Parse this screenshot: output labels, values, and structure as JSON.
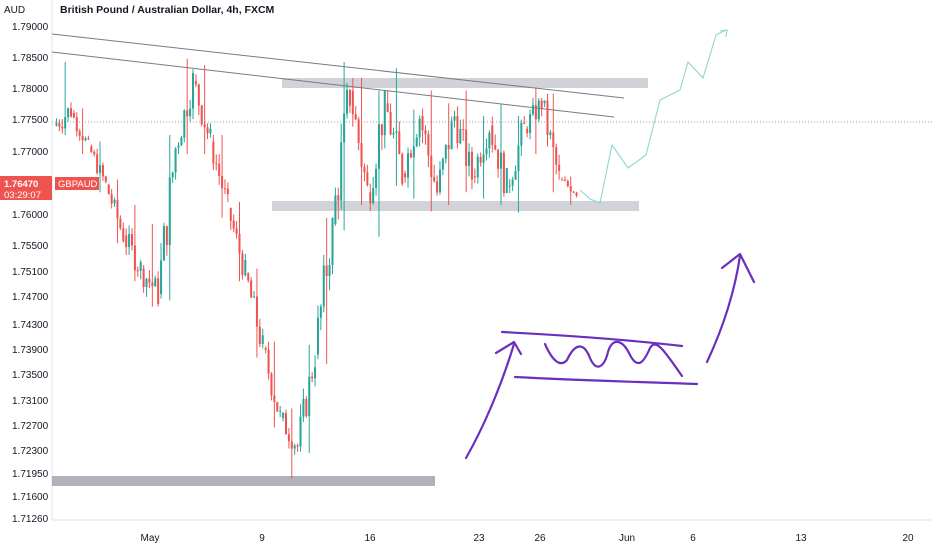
{
  "header": {
    "currency_label": "AUD",
    "title": "British Pound / Australian Dollar, 4h, FXCM"
  },
  "price_badge": {
    "price": "1.76470",
    "symbol": "GBPAUD",
    "countdown": "03:29:07"
  },
  "colors": {
    "up": "#26a69a",
    "down": "#ef5350",
    "zone": "#b2b5be",
    "trendline": "#787b86",
    "projection": "#8fd6cd",
    "drawing": "#6a2fbf",
    "badge": "#ef5350"
  },
  "chart_data": {
    "type": "candlestick",
    "title": "British Pound / Australian Dollar, 4h, FXCM",
    "ylabel": "AUD",
    "ylim": [
      1.7104,
      1.7913
    ],
    "y_ticks": [
      "1.79000",
      "1.78500",
      "1.78000",
      "1.77500",
      "1.77000",
      "1.76470",
      "1.76000",
      "1.75500",
      "1.75100",
      "1.74700",
      "1.74300",
      "1.73900",
      "1.73500",
      "1.73100",
      "1.72700",
      "1.72300",
      "1.71950",
      "1.71600",
      "1.71260"
    ],
    "x_ticks": [
      "May",
      "9",
      "16",
      "23",
      "26",
      "Jun",
      "6",
      "13",
      "20"
    ],
    "last_price": 1.7647,
    "support_zones": [
      1.7605,
      1.7798,
      1.7185
    ],
    "ohlc_anchors": [
      [
        1.7745,
        1.7845,
        1.773,
        1.777
      ],
      [
        1.7765,
        1.7772,
        1.77,
        1.7712
      ],
      [
        1.7712,
        1.772,
        1.764,
        1.7652
      ],
      [
        1.7652,
        1.766,
        1.756,
        1.7572
      ],
      [
        1.7572,
        1.762,
        1.75,
        1.752
      ],
      [
        1.752,
        1.759,
        1.746,
        1.748
      ],
      [
        1.748,
        1.773,
        1.747,
        1.771
      ],
      [
        1.771,
        1.785,
        1.77,
        1.7815
      ],
      [
        1.7815,
        1.784,
        1.77,
        1.772
      ],
      [
        1.772,
        1.773,
        1.76,
        1.7615
      ],
      [
        1.7615,
        1.7625,
        1.75,
        1.7512
      ],
      [
        1.7512,
        1.752,
        1.738,
        1.7395
      ],
      [
        1.7395,
        1.7405,
        1.727,
        1.7285
      ],
      [
        1.7285,
        1.73,
        1.719,
        1.724
      ],
      [
        1.724,
        1.74,
        1.723,
        1.7385
      ],
      [
        1.7385,
        1.76,
        1.737,
        1.759
      ],
      [
        1.759,
        1.7845,
        1.758,
        1.78
      ],
      [
        1.78,
        1.782,
        1.762,
        1.764
      ],
      [
        1.764,
        1.78,
        1.757,
        1.778
      ],
      [
        1.778,
        1.7835,
        1.765,
        1.767
      ],
      [
        1.767,
        1.777,
        1.763,
        1.776
      ],
      [
        1.776,
        1.78,
        1.761,
        1.764
      ],
      [
        1.764,
        1.778,
        1.762,
        1.776
      ],
      [
        1.776,
        1.78,
        1.764,
        1.7665
      ],
      [
        1.7665,
        1.776,
        1.763,
        1.7745
      ],
      [
        1.7745,
        1.778,
        1.762,
        1.765
      ],
      [
        1.765,
        1.776,
        1.7608,
        1.774
      ],
      [
        1.774,
        1.7805,
        1.77,
        1.778
      ],
      [
        1.778,
        1.7795,
        1.764,
        1.766
      ],
      [
        1.766,
        1.7665,
        1.762,
        1.764
      ]
    ],
    "projection_path": [
      [
        1.762,
        1.7612
      ],
      [
        1.764,
        1.762
      ],
      [
        1.774,
        1.77
      ],
      [
        1.768,
        1.784
      ],
      [
        1.78,
        1.789
      ]
    ],
    "grid": false
  }
}
